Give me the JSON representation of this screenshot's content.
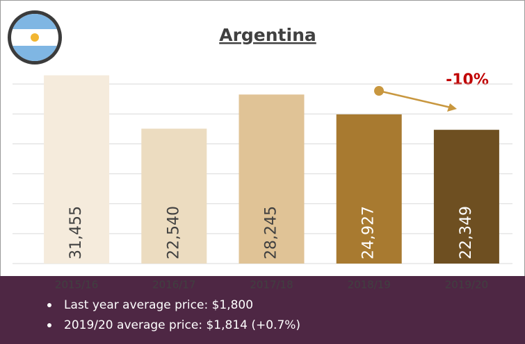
{
  "chart_data": {
    "type": "bar",
    "title": "Argentina",
    "categories": [
      "2015/16",
      "2016/17",
      "2017/18",
      "2018/19",
      "2019/20"
    ],
    "values": [
      31455,
      22540,
      28245,
      24927,
      22349
    ],
    "value_labels": [
      "31,455",
      "22,540",
      "28,245",
      "24,927",
      "22,349"
    ],
    "colors": [
      "#f5ebdc",
      "#ecdcc0",
      "#e0c396",
      "#a87a30",
      "#6e4f21"
    ],
    "ylim": [
      0,
      35000
    ],
    "yticks": [
      0,
      5000,
      10000,
      15000,
      20000,
      25000,
      30000
    ],
    "grid": true,
    "annotation": "-10%",
    "notes": [
      "Last year average price: $1,800",
      "2019/20 average price: $1,814 (+0.7%)"
    ]
  }
}
